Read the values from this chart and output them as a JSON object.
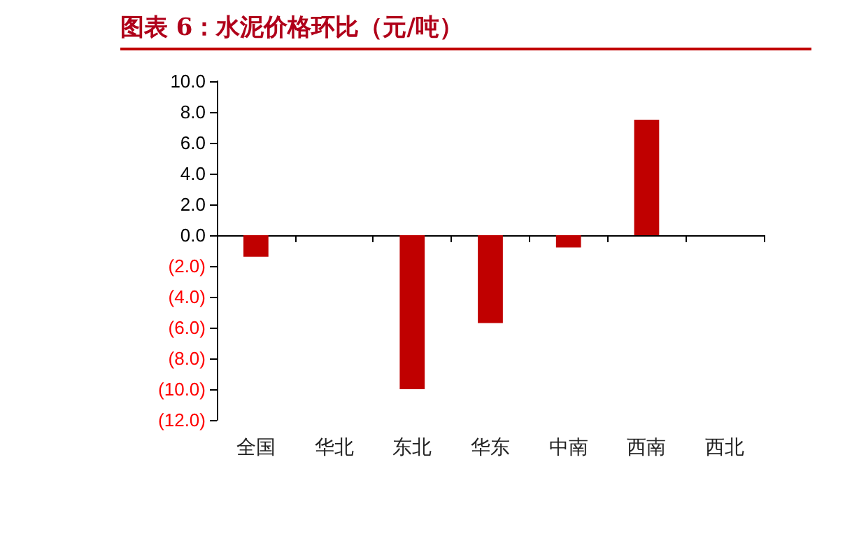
{
  "chart_data": {
    "type": "bar",
    "title": "图表 6：水泥价格环比（元/吨）",
    "categories": [
      "全国",
      "华北",
      "东北",
      "华东",
      "中南",
      "西南",
      "西北"
    ],
    "values": [
      -1.4,
      0,
      -10,
      -5.7,
      -0.8,
      7.5,
      0
    ],
    "color": "#c00000",
    "ylim": [
      -12,
      10
    ],
    "yticks": [
      {
        "value": -12,
        "label": "(12.0)"
      },
      {
        "value": -10,
        "label": "(10.0)"
      },
      {
        "value": -8,
        "label": "(8.0)"
      },
      {
        "value": -6,
        "label": "(6.0)"
      },
      {
        "value": -4,
        "label": "(4.0)"
      },
      {
        "value": -2,
        "label": "(2.0)"
      },
      {
        "value": 0,
        "label": "0.0"
      },
      {
        "value": 2,
        "label": "2.0"
      },
      {
        "value": 4,
        "label": "4.0"
      },
      {
        "value": 6,
        "label": "6.0"
      },
      {
        "value": 8,
        "label": "8.0"
      },
      {
        "value": 10,
        "label": "10.0"
      }
    ],
    "data_labels": false
  }
}
